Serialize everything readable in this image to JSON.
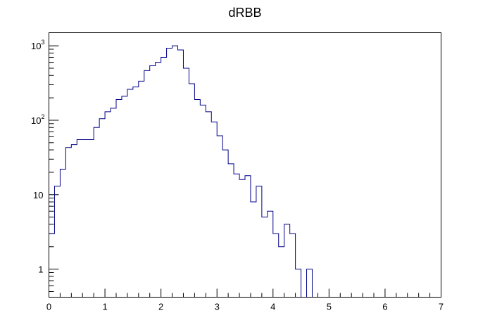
{
  "chart_data": {
    "type": "histogram",
    "title": "dRBB",
    "xlabel": "",
    "ylabel": "",
    "xlim": [
      0,
      7
    ],
    "ylim": [
      0.42,
      1500
    ],
    "yscale": "log",
    "grid": false,
    "line_color": "#00008b",
    "bin_width": 0.1,
    "x_ticks": [
      0,
      1,
      2,
      3,
      4,
      5,
      6,
      7
    ],
    "x_tick_labels": [
      "0",
      "1",
      "2",
      "3",
      "4",
      "5",
      "6",
      "7"
    ],
    "y_ticks": [
      {
        "value": 1,
        "base": "1",
        "exp": ""
      },
      {
        "value": 10,
        "base": "10",
        "exp": ""
      },
      {
        "value": 100,
        "base": "10",
        "exp": "2"
      },
      {
        "value": 1000,
        "base": "10",
        "exp": "3"
      }
    ],
    "bin_edges": [
      0,
      0.1,
      0.2,
      0.3,
      0.4,
      0.5,
      0.6,
      0.7,
      0.8,
      0.9,
      1.0,
      1.1,
      1.2,
      1.3,
      1.4,
      1.5,
      1.6,
      1.7,
      1.8,
      1.9,
      2.0,
      2.1,
      2.2,
      2.3,
      2.4,
      2.5,
      2.6,
      2.7,
      2.8,
      2.9,
      3.0,
      3.1,
      3.2,
      3.3,
      3.4,
      3.5,
      3.6,
      3.7,
      3.8,
      3.9,
      4.0,
      4.1,
      4.2,
      4.3,
      4.4,
      4.5,
      4.6,
      4.7,
      4.8,
      4.9,
      5.0,
      5.1,
      5.2,
      5.3,
      5.4,
      5.5,
      5.6,
      5.7,
      5.8,
      5.9,
      6.0,
      6.1,
      6.2,
      6.3,
      6.4,
      6.5
    ],
    "values": [
      3,
      13,
      22,
      43,
      47,
      55,
      55,
      55,
      80,
      105,
      130,
      145,
      190,
      210,
      260,
      280,
      335,
      465,
      540,
      600,
      700,
      930,
      1000,
      880,
      500,
      310,
      190,
      160,
      130,
      95,
      62,
      40,
      26,
      19,
      16,
      18,
      8,
      13,
      5,
      6,
      3,
      2,
      4,
      3,
      1,
      0,
      1,
      0,
      0,
      0,
      0,
      0,
      0,
      0,
      0,
      0,
      0,
      0,
      0,
      0,
      0,
      0,
      0,
      0,
      0
    ]
  }
}
